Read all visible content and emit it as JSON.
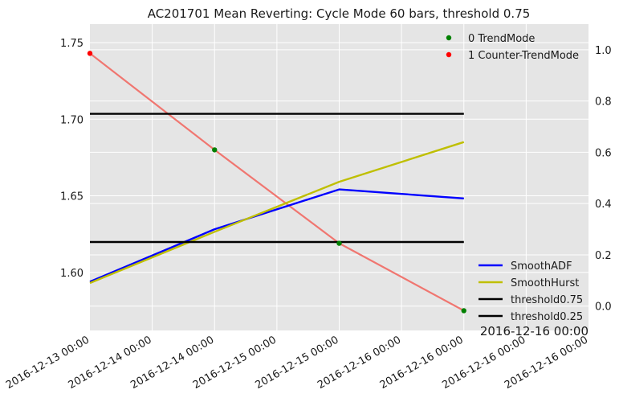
{
  "chart_data": {
    "type": "line",
    "title": "AC201701 Mean Reverting: Cycle Mode 60 bars, threshold 0.75",
    "x_tick_labels": [
      "2016-12-13 00:00",
      "2016-12-14 00:00",
      "2016-12-14 00:00",
      "2016-12-15 00:00",
      "2016-12-15 00:00",
      "2016-12-16 00:00",
      "2016-12-16 00:00",
      "2016-12-16 00:00",
      "2016-12-16 00:00"
    ],
    "x_offset_label": "2016-12-16 00:00",
    "x_range": [
      0,
      8
    ],
    "left_axis": {
      "range": [
        1.5621,
        1.7621
      ],
      "ticks": [
        1.6,
        1.65,
        1.7,
        1.75
      ],
      "tick_labels": [
        "1.60",
        "1.65",
        "1.70",
        "1.75"
      ]
    },
    "right_axis": {
      "range": [
        -0.095,
        1.1
      ],
      "ticks": [
        0.0,
        0.2,
        0.4,
        0.6,
        0.8,
        1.0
      ],
      "tick_labels": [
        "0.0",
        "0.2",
        "0.4",
        "0.6",
        "0.8",
        "1.0"
      ]
    },
    "price_line": {
      "color": "#f07670",
      "axis": "left",
      "x": [
        0,
        2,
        4,
        6
      ],
      "y": [
        1.743,
        1.68,
        1.619,
        1.575
      ]
    },
    "series": [
      {
        "name": "SmoothADF",
        "color": "#0000ff",
        "axis": "right",
        "x": [
          0,
          2,
          4,
          6
        ],
        "y": [
          0.095,
          0.3,
          0.455,
          0.42
        ]
      },
      {
        "name": "SmoothHurst",
        "color": "#bfbf00",
        "axis": "right",
        "x": [
          0,
          2,
          4,
          6
        ],
        "y": [
          0.09,
          0.29,
          0.485,
          0.64
        ]
      },
      {
        "name": "threshold0.75",
        "color": "#000000",
        "axis": "right",
        "x": [
          0,
          6
        ],
        "y": [
          0.75,
          0.75
        ]
      },
      {
        "name": "threshold0.25",
        "color": "#000000",
        "axis": "right",
        "x": [
          0,
          6
        ],
        "y": [
          0.25,
          0.25
        ]
      }
    ],
    "scatter": [
      {
        "name": "0 TrendMode",
        "color": "#008000",
        "axis": "left",
        "x": [
          2,
          4,
          6
        ],
        "y": [
          1.68,
          1.619,
          1.575
        ]
      },
      {
        "name": "1 Counter-TrendMode",
        "color": "#ff0000",
        "axis": "left",
        "x": [
          0
        ],
        "y": [
          1.743
        ]
      }
    ],
    "scatter_legend_position": "upper-right",
    "line_legend_position": "lower-right",
    "grid": true,
    "background": "#e5e5e5",
    "grid_color": "#ffffff"
  }
}
